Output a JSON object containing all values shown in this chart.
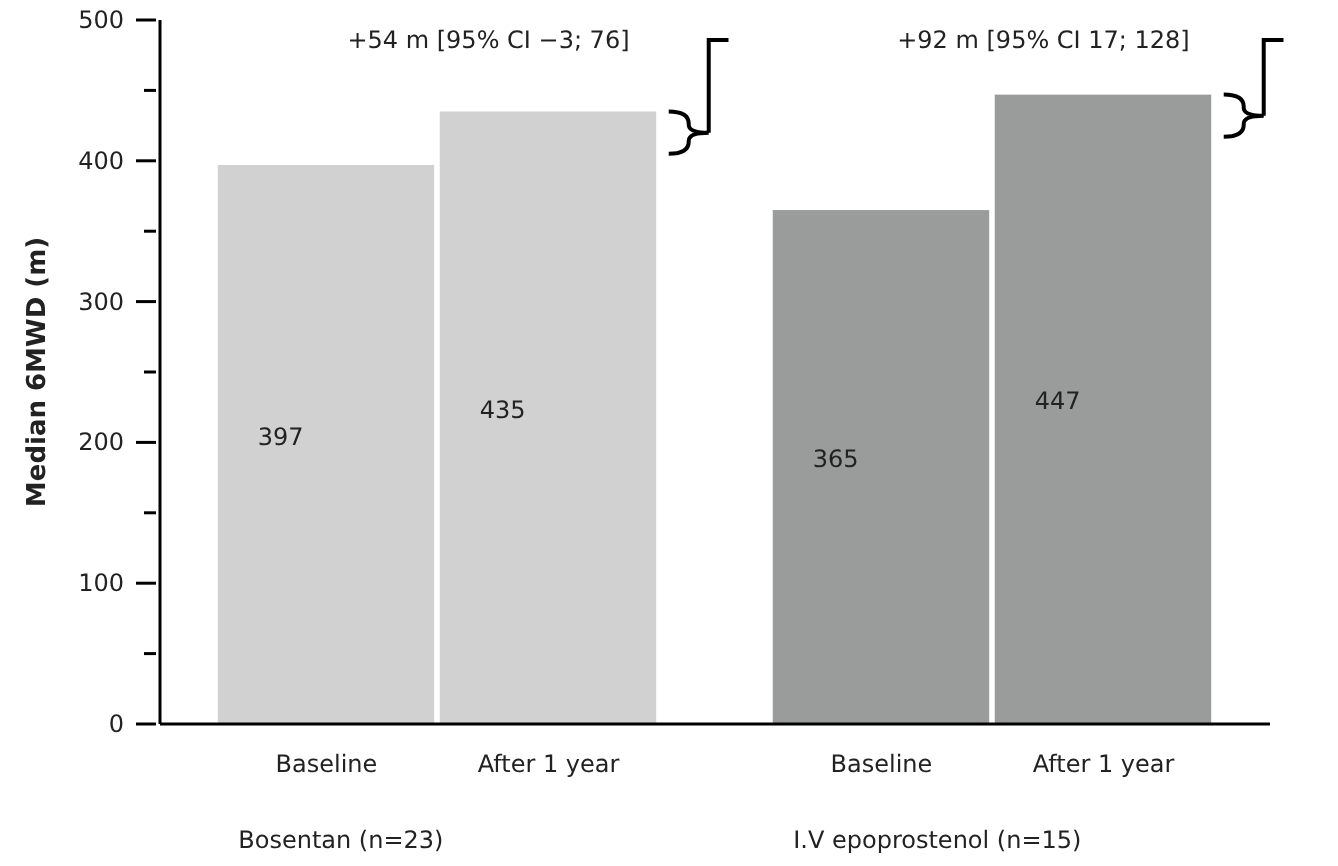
{
  "chart_data": {
    "type": "bar",
    "ylabel": "Median 6MWD (m)",
    "categories": [
      "Baseline",
      "After 1 year",
      "Baseline",
      "After 1 year"
    ],
    "values": [
      397,
      435,
      365,
      447
    ],
    "colors": [
      "#d0d1d0",
      "#d0d1d0",
      "#9a9c9c",
      "#9a9c9c"
    ],
    "ylim": [
      0,
      500
    ],
    "yticks": [
      0,
      {
        "value": 50,
        "label": null
      },
      100,
      {
        "value": 150,
        "label": null
      },
      200,
      {
        "value": 250,
        "label": null
      },
      300,
      {
        "value": 350,
        "label": null
      },
      400,
      {
        "value": 450,
        "label": null
      },
      500
    ],
    "data_labels": true,
    "annotations": [
      "+54 m [95% CI −3; 76]",
      "+92 m [95% CI 17; 128]",
      "Bosentan (n=23)",
      "I.V epoprostenol (n=15)"
    ]
  }
}
